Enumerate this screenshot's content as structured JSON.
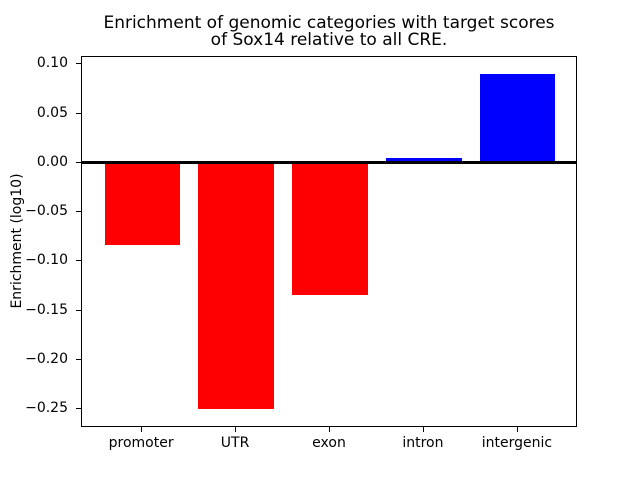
{
  "title": {
    "line1": "Enrichment of genomic categories with target scores",
    "line2": "of Sox14 relative to all CRE."
  },
  "chart_data": {
    "type": "bar",
    "title": "Enrichment of genomic categories with target scores\nof Sox14 relative to all CRE.",
    "xlabel": "",
    "ylabel": "Enrichment (log10)",
    "categories": [
      "promoter",
      "UTR",
      "exon",
      "intron",
      "intergenic"
    ],
    "values": [
      -0.084,
      -0.25,
      -0.134,
      0.005,
      0.09
    ],
    "bar_colors": [
      "#ff0000",
      "#ff0000",
      "#ff0000",
      "#0000ff",
      "#0000ff"
    ],
    "negative_color": "#ff0000",
    "positive_color": "#0000ff",
    "bar_width": 0.8,
    "xlim": [
      -0.64,
      4.64
    ],
    "ylim": [
      -0.2693,
      0.1074
    ],
    "yticks": [
      0.1,
      0.05,
      0.0,
      -0.05,
      -0.1,
      -0.15,
      -0.2,
      -0.25
    ],
    "ytick_labels": [
      "0.10",
      "0.05",
      "0.00",
      "−0.05",
      "−0.10",
      "−0.15",
      "−0.20",
      "−0.25"
    ],
    "zero_line": true,
    "grid": false,
    "legend": "none",
    "axis_color": "#000000",
    "background_color": "#ffffff"
  }
}
